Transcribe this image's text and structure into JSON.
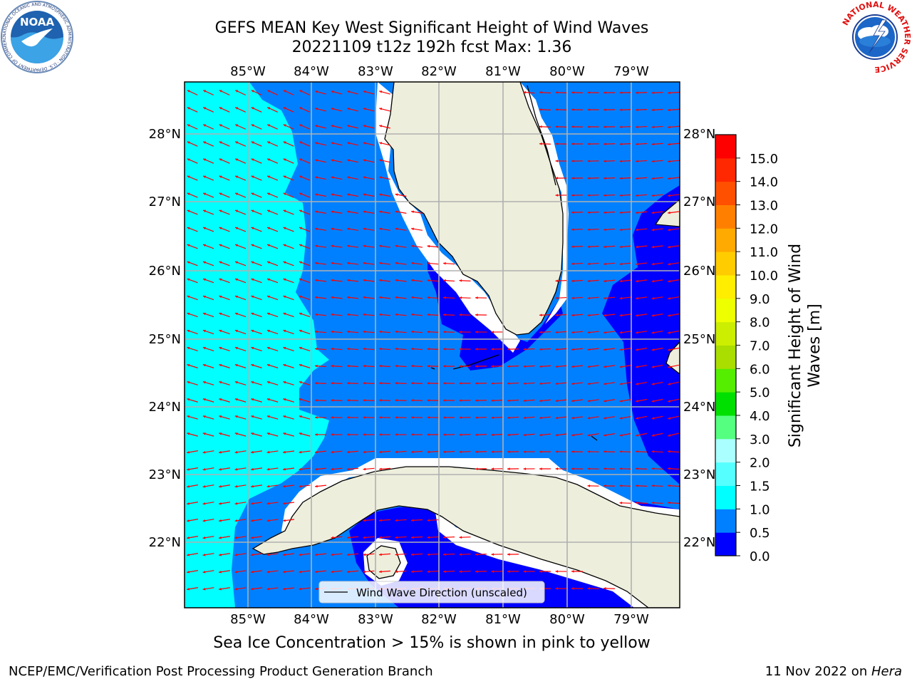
{
  "title": {
    "line1": "GEFS MEAN Key West Significant Height of Wind Waves",
    "line2": "20221109 t12z 192h fcst   Max: 1.36"
  },
  "map": {
    "lon_labels": [
      "85°W",
      "84°W",
      "83°W",
      "82°W",
      "81°W",
      "80°W",
      "79°W"
    ],
    "lat_labels": [
      "28°N",
      "27°N",
      "26°N",
      "25°N",
      "24°N",
      "23°N",
      "22°N"
    ],
    "legend_label": "Wind Wave Direction (unscaled)",
    "colors": {
      "land": "#eeeedd",
      "band_0_05": "#0000ff",
      "band_05_1": "#0080ff",
      "band_1_15": "#00ffff",
      "arrow": "#ff0000",
      "grid": "#b0b0b0"
    }
  },
  "colorbar": {
    "label_line1": "Significant Height of Wind",
    "label_line2": "Waves [m]",
    "ticks": [
      "0.0",
      "0.5",
      "1.0",
      "1.5",
      "2.0",
      "3.0",
      "4.0",
      "5.0",
      "6.0",
      "7.0",
      "8.0",
      "9.0",
      "10.0",
      "11.0",
      "12.0",
      "13.0",
      "14.0",
      "15.0"
    ],
    "colors": [
      "#0000ff",
      "#0080ff",
      "#00ffff",
      "#55ffff",
      "#aaffff",
      "#55ff80",
      "#00e000",
      "#55ee00",
      "#aadd00",
      "#ccee00",
      "#eeff00",
      "#ffee00",
      "#ffcc00",
      "#ffaa00",
      "#ff8000",
      "#ff5000",
      "#ff2800",
      "#ff0000"
    ]
  },
  "ice_note": "Sea Ice Concentration > 15% is shown in pink to yellow",
  "footer": {
    "left": "NCEP/EMC/Verification Post Processing Product Generation Branch",
    "right_date": "11 Nov 2022 on ",
    "right_host": "Hera"
  },
  "logos": {
    "noaa_text": "NOAA",
    "noaa_ring": "NATIONAL OCEANIC AND ATMOSPHERIC ADMINISTRATION · U.S. DEPARTMENT OF COMMERCE",
    "nws_ring": "NATIONAL WEATHER SERVICE"
  }
}
